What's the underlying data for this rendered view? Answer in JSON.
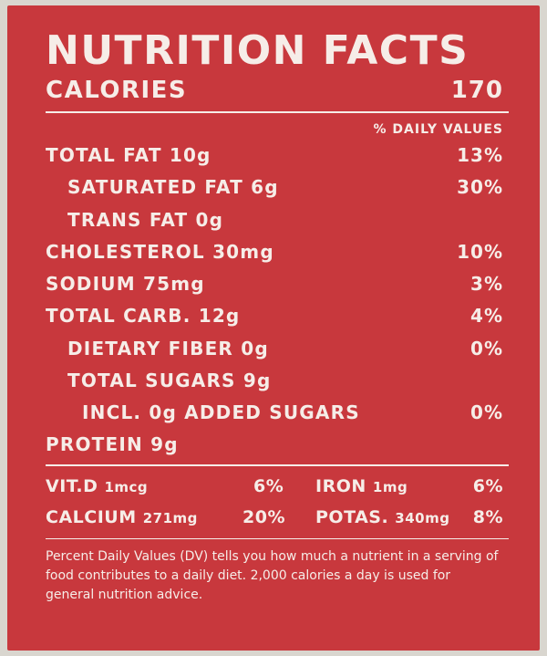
{
  "title": "NUTRITION FACTS",
  "calories": {
    "label": "CALORIES",
    "value": "170"
  },
  "daily_values_header": "% DAILY VALUES",
  "nutrients": [
    {
      "name": "TOTAL FAT",
      "amount": "10g",
      "dv": "13%"
    },
    {
      "name": "SATURATED FAT",
      "amount": "6g",
      "dv": "30%"
    },
    {
      "name": "TRANS FAT",
      "amount": "0g",
      "dv": ""
    },
    {
      "name": "CHOLESTEROL",
      "amount": "30mg",
      "dv": "10%"
    },
    {
      "name": "SODIUM",
      "amount": "75mg",
      "dv": "3%"
    },
    {
      "name": "TOTAL CARB.",
      "amount": "12g",
      "dv": "4%"
    },
    {
      "name": "DIETARY FIBER",
      "amount": "0g",
      "dv": "0%"
    },
    {
      "name": "TOTAL SUGARS",
      "amount": "9g",
      "dv": ""
    },
    {
      "name": "INCL. 0g ADDED SUGARS",
      "amount": "",
      "dv": "0%"
    },
    {
      "name": "PROTEIN",
      "amount": "9g",
      "dv": ""
    }
  ],
  "minerals": {
    "vitd": {
      "name": "VIT.D",
      "amount": "1mcg",
      "dv": "6%"
    },
    "iron": {
      "name": "IRON",
      "amount": "1mg",
      "dv": "6%"
    },
    "calcium": {
      "name": "CALCIUM",
      "amount": "271mg",
      "dv": "20%"
    },
    "potassium": {
      "name": "POTAS.",
      "amount": "340mg",
      "dv": "8%"
    }
  },
  "footnote": "Percent Daily Values (DV) tells you how much a nutrient in a serving of food contributes to a daily diet. 2,000 calories a day is used for general nutrition advice.",
  "colors": {
    "background": "#c8383d",
    "text": "#f6ede8"
  }
}
